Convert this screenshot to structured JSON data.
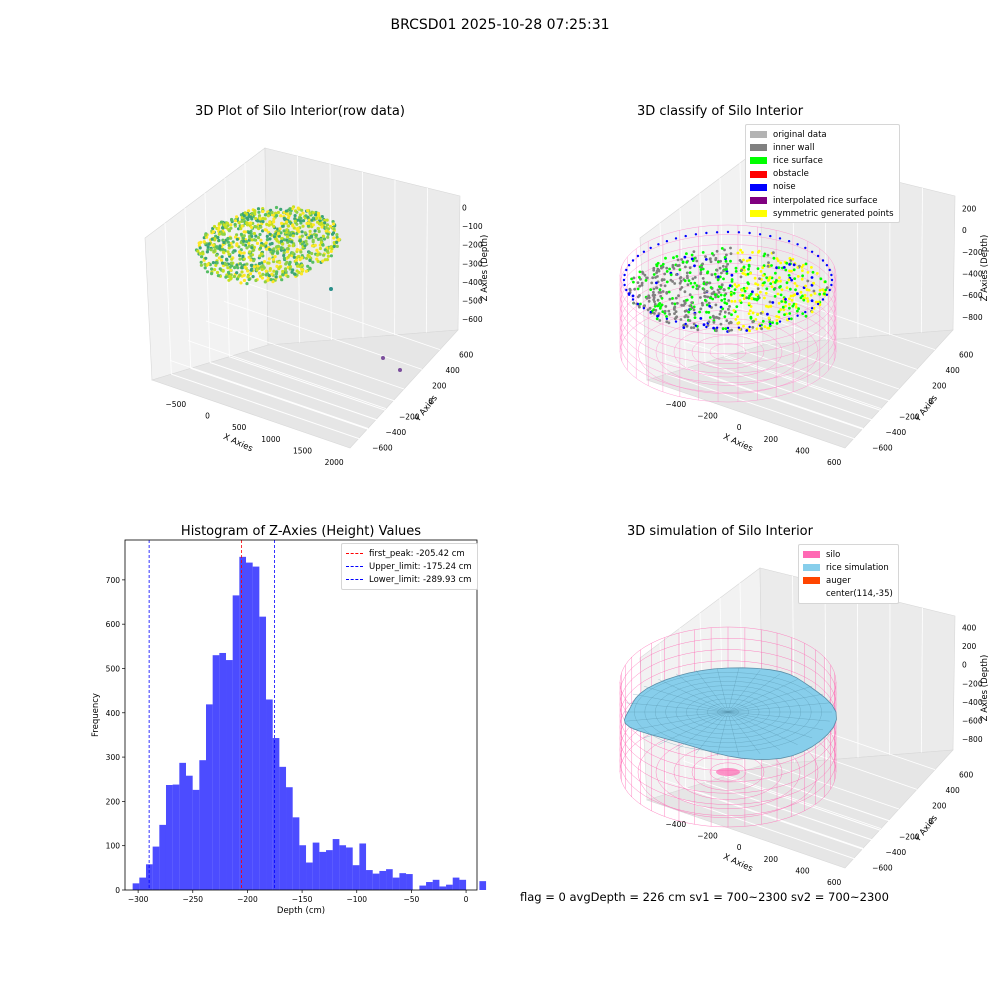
{
  "figure_title": "BRCSD01 2025-10-28 07:25:31",
  "status_line": "flag = 0     avgDepth = 226 cm  sv1 = 700~2300  sv2 = 700~2300",
  "chart_data": [
    {
      "type": "scatter",
      "title": "3D Plot of Silo Interior(row data)",
      "xlabel": "X Axies",
      "ylabel": "Y Axies",
      "zlabel": "Z Axies (Depth)",
      "x_ticks": [
        "−500",
        "0",
        "500",
        "1000",
        "1500",
        "2000"
      ],
      "y_ticks": [
        "600",
        "400",
        "200",
        "0",
        "−200",
        "−400",
        "−600"
      ],
      "z_ticks": [
        "0",
        "−100",
        "−200",
        "−300",
        "−400",
        "−500",
        "−600"
      ],
      "colors": [
        "#3aa376",
        "#56be64",
        "#8ed146",
        "#c7e020",
        "#fde725",
        "#2a8f8a",
        "#7b4e9c"
      ]
    },
    {
      "type": "scatter",
      "title": "3D classify of Silo Interior",
      "xlabel": "X Axies",
      "ylabel": "Y Axies",
      "zlabel": "Z Axies (Depth)",
      "x_ticks": [
        "−400",
        "−200",
        "0",
        "200",
        "400",
        "600"
      ],
      "y_ticks": [
        "600",
        "400",
        "200",
        "0",
        "−200",
        "−400",
        "−600"
      ],
      "z_ticks": [
        "200",
        "0",
        "−200",
        "−400",
        "−600",
        "−800"
      ],
      "legend": [
        {
          "label": "original data",
          "color": "#b3b3b3"
        },
        {
          "label": "inner wall",
          "color": "#808080"
        },
        {
          "label": "rice surface",
          "color": "#00ff00"
        },
        {
          "label": "obstacle",
          "color": "#ff0000"
        },
        {
          "label": "noise",
          "color": "#0000ff"
        },
        {
          "label": "interpolated rice surface",
          "color": "#800080"
        },
        {
          "label": "symmetric generated points",
          "color": "#ffff00"
        }
      ]
    },
    {
      "type": "bar",
      "title": "Histogram of Z-Axies (Height) Values",
      "xlabel": "Depth (cm)",
      "ylabel": "Frequency",
      "xlim": [
        -312,
        10
      ],
      "ylim": [
        0,
        790
      ],
      "x_ticks": [
        -300,
        -250,
        -200,
        -150,
        -100,
        -50,
        0
      ],
      "y_ticks": [
        0,
        100,
        200,
        300,
        400,
        500,
        600,
        700
      ],
      "bin_width": 6.1,
      "bin_edges_start": -305,
      "values": [
        15,
        28,
        58,
        98,
        147,
        237,
        238,
        287,
        258,
        226,
        293,
        419,
        530,
        535,
        519,
        665,
        752,
        739,
        730,
        617,
        430,
        343,
        278,
        232,
        164,
        101,
        62,
        107,
        86,
        90,
        115,
        101,
        96,
        56,
        105,
        45,
        37,
        43,
        47,
        28,
        38,
        36,
        0,
        10,
        18,
        23,
        8,
        12,
        28,
        23,
        0,
        0,
        20,
        0
      ],
      "bar_color": "#0000ff",
      "bar_opacity": 0.7,
      "vlines": [
        {
          "label": "first_peak: -205.42 cm",
          "x": -205.42,
          "color": "#ff0000"
        },
        {
          "label": "Upper_limit: -175.24 cm",
          "x": -175.24,
          "color": "#0000ff"
        },
        {
          "label": "Lower_limit: -289.93 cm",
          "x": -289.93,
          "color": "#0000ff"
        }
      ],
      "legend_position": "upper right"
    },
    {
      "type": "area",
      "title": "3D simulation of Silo Interior",
      "xlabel": "X Axies",
      "ylabel": "Y Axies",
      "zlabel": "Z Axies (Depth)",
      "x_ticks": [
        "−400",
        "−200",
        "0",
        "200",
        "400",
        "600"
      ],
      "y_ticks": [
        "600",
        "400",
        "200",
        "0",
        "−200",
        "−400",
        "−600"
      ],
      "z_ticks": [
        "400",
        "200",
        "0",
        "−200",
        "−400",
        "−600",
        "−800"
      ],
      "legend": [
        {
          "label": "silo",
          "color": "#ff69b4"
        },
        {
          "label": "rice simulation",
          "color": "#87ceeb"
        },
        {
          "label": "auger",
          "color": "#ff4500"
        },
        {
          "label": "center(114,-35)",
          "color": ""
        }
      ]
    }
  ]
}
